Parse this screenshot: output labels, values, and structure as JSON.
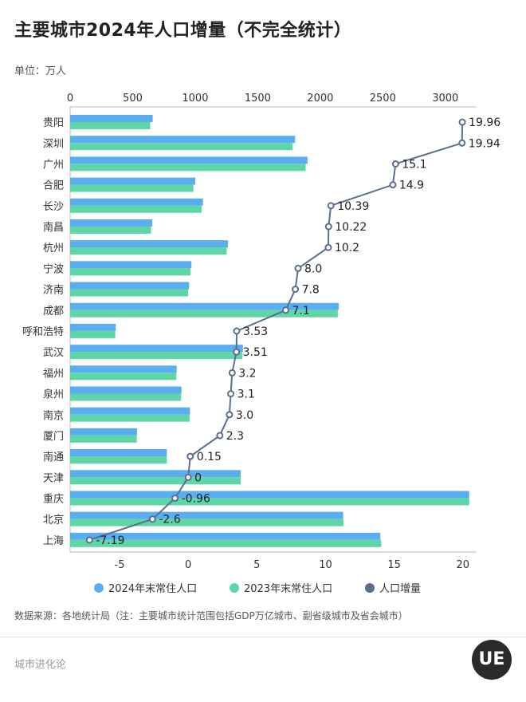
{
  "header": {
    "title": "主要城市2024年人口增量（不完全统计）",
    "unit": "单位：万人"
  },
  "legend": {
    "items": [
      {
        "label": "2024年末常住人口",
        "color": "#5aaef0"
      },
      {
        "label": "2023年末常住人口",
        "color": "#5ed6a6"
      },
      {
        "label": "人口增量",
        "color": "#5b6e91"
      }
    ]
  },
  "footer": {
    "source": "数据来源：各地统计局（注：主要城市统计范围包括GDP万亿城市、副省级城市及省会城市）",
    "brand": "城市进化论",
    "logo_text": "UE"
  },
  "chart_data": {
    "type": "bar",
    "categories": [
      "贵阳",
      "深圳",
      "广州",
      "合肥",
      "长沙",
      "南昌",
      "杭州",
      "宁波",
      "济南",
      "成都",
      "呼和浩特",
      "武汉",
      "福州",
      "泉州",
      "南京",
      "厦门",
      "南通",
      "天津",
      "重庆",
      "北京",
      "上海"
    ],
    "series": [
      {
        "name": "2024年末常住人口",
        "color": "#5aaef0",
        "values": [
          660,
          1799,
          1898,
          1000,
          1062,
          657,
          1262,
          970,
          951,
          2147,
          365,
          1381,
          852,
          890,
          958,
          535,
          773,
          1364,
          3191,
          2183,
          2480
        ]
      },
      {
        "name": "2023年末常住人口",
        "color": "#5ed6a6",
        "values": [
          640,
          1779,
          1883,
          985,
          1052,
          647,
          1252,
          962,
          943,
          2140,
          361,
          1377,
          849,
          887,
          955,
          533,
          773,
          1364,
          3191,
          2186,
          2487
        ]
      },
      {
        "name": "人口增量",
        "type": "line",
        "color": "#5b6e91",
        "values": [
          19.96,
          19.94,
          15.1,
          14.9,
          10.39,
          10.22,
          10.2,
          8.0,
          7.8,
          7.1,
          3.53,
          3.51,
          3.2,
          3.1,
          3.0,
          2.3,
          0.15,
          0,
          -0.96,
          -2.6,
          -7.19
        ],
        "labels": [
          "19.96",
          "19.94",
          "15.1",
          "14.9",
          "10.39",
          "10.22",
          "10.2",
          "8.0",
          "7.8",
          "7.1",
          "3.53",
          "3.51",
          "3.2",
          "3.1",
          "3.0",
          "2.3",
          "0.15",
          "0",
          "-0.96",
          "-2.6",
          "-7.19"
        ]
      }
    ],
    "x_top": {
      "ticks": [
        0,
        500,
        1000,
        1500,
        2000,
        2500,
        3000
      ],
      "range": [
        0,
        3250
      ]
    },
    "x_bottom": {
      "ticks": [
        -5,
        0,
        5,
        10,
        15,
        20
      ],
      "range": [
        -8.6,
        21
      ]
    },
    "grid": false,
    "legend_position": "bottom"
  }
}
